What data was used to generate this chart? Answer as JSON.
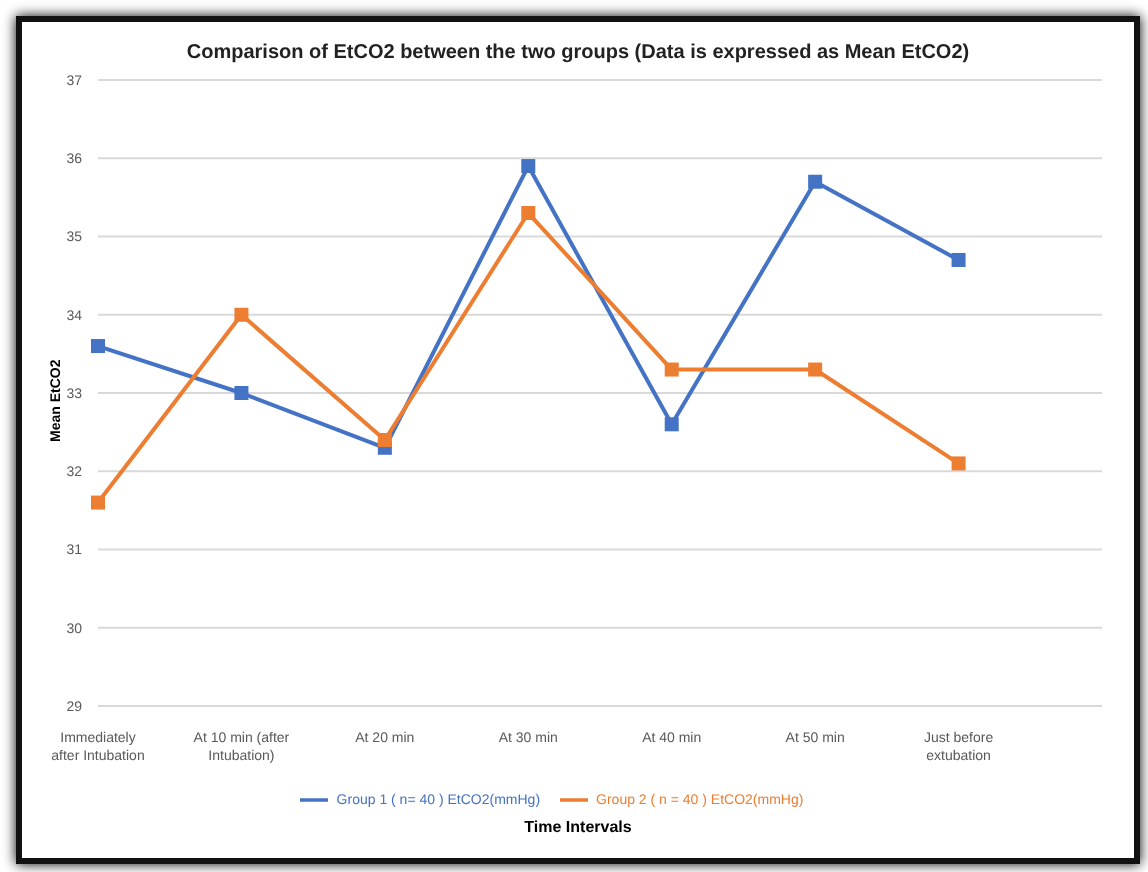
{
  "chart_data": {
    "type": "line",
    "title": "Comparison of EtCO2 between the two groups (Data is expressed as Mean EtCO2)",
    "xlabel": "Time Intervals",
    "ylabel": "Mean EtCO2",
    "categories": [
      "Immediately after Intubation",
      "At 10 min (after Intubation)",
      "At 20 min",
      "At 30 min",
      "At 40 min",
      "At 50 min",
      "Just before extubation",
      null
    ],
    "series": [
      {
        "name": "Group 1 ( n= 40 ) EtCO2(mmHg)",
        "color": "#4472c4",
        "values": [
          33.6,
          33.0,
          32.3,
          35.9,
          32.6,
          35.7,
          34.7,
          null
        ]
      },
      {
        "name": "Group 2 ( n = 40 ) EtCO2(mmHg)",
        "color": "#ed7d31",
        "values": [
          31.6,
          34.0,
          32.4,
          35.3,
          33.3,
          33.3,
          32.1,
          null
        ]
      }
    ],
    "ylim": [
      29,
      37
    ],
    "yticks": [
      29,
      30,
      31,
      32,
      33,
      34,
      35,
      36,
      37
    ],
    "grid": "y",
    "legend": "bottom",
    "marker": "square",
    "line_style": "solid"
  }
}
